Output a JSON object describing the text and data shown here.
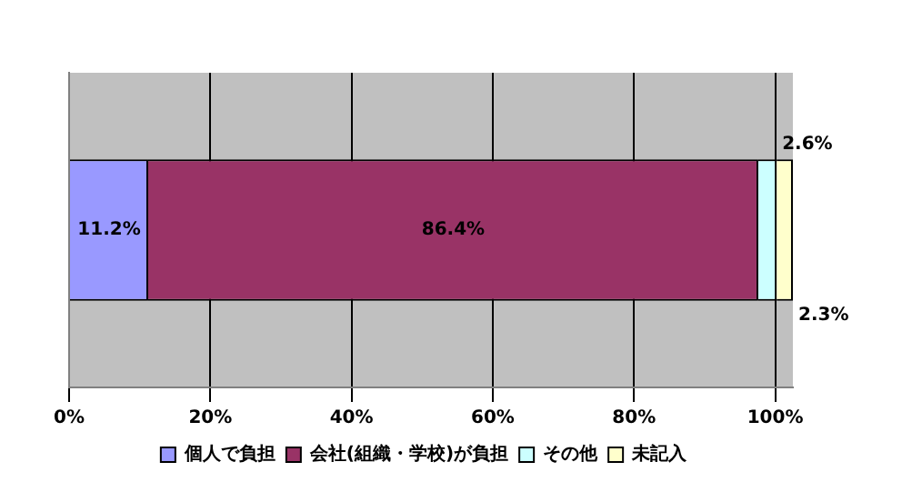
{
  "chart_data": {
    "type": "bar",
    "orientation": "horizontal",
    "stacked": true,
    "categories": [
      null
    ],
    "series": [
      {
        "name": "個人で負担",
        "color": "#9999ff",
        "values": [
          11.2
        ]
      },
      {
        "name": "会社(組織・学校)が負担",
        "color": "#993366",
        "values": [
          86.4
        ]
      },
      {
        "name": "その他",
        "color": "#ccffff",
        "values": [
          2.6
        ]
      },
      {
        "name": "未記入",
        "color": "#ffffcc",
        "values": [
          2.3
        ]
      }
    ],
    "xlim": [
      0,
      102.5
    ],
    "xticks": [
      {
        "value": 0,
        "label": "0%"
      },
      {
        "value": 20,
        "label": "20%"
      },
      {
        "value": 40,
        "label": "40%"
      },
      {
        "value": 60,
        "label": "60%"
      },
      {
        "value": 80,
        "label": "80%"
      },
      {
        "value": 100,
        "label": "100%"
      }
    ],
    "value_labels": [
      "11.2%",
      "86.4%",
      "2.6%",
      "2.3%"
    ],
    "grid": "x",
    "legend": "bottom"
  }
}
